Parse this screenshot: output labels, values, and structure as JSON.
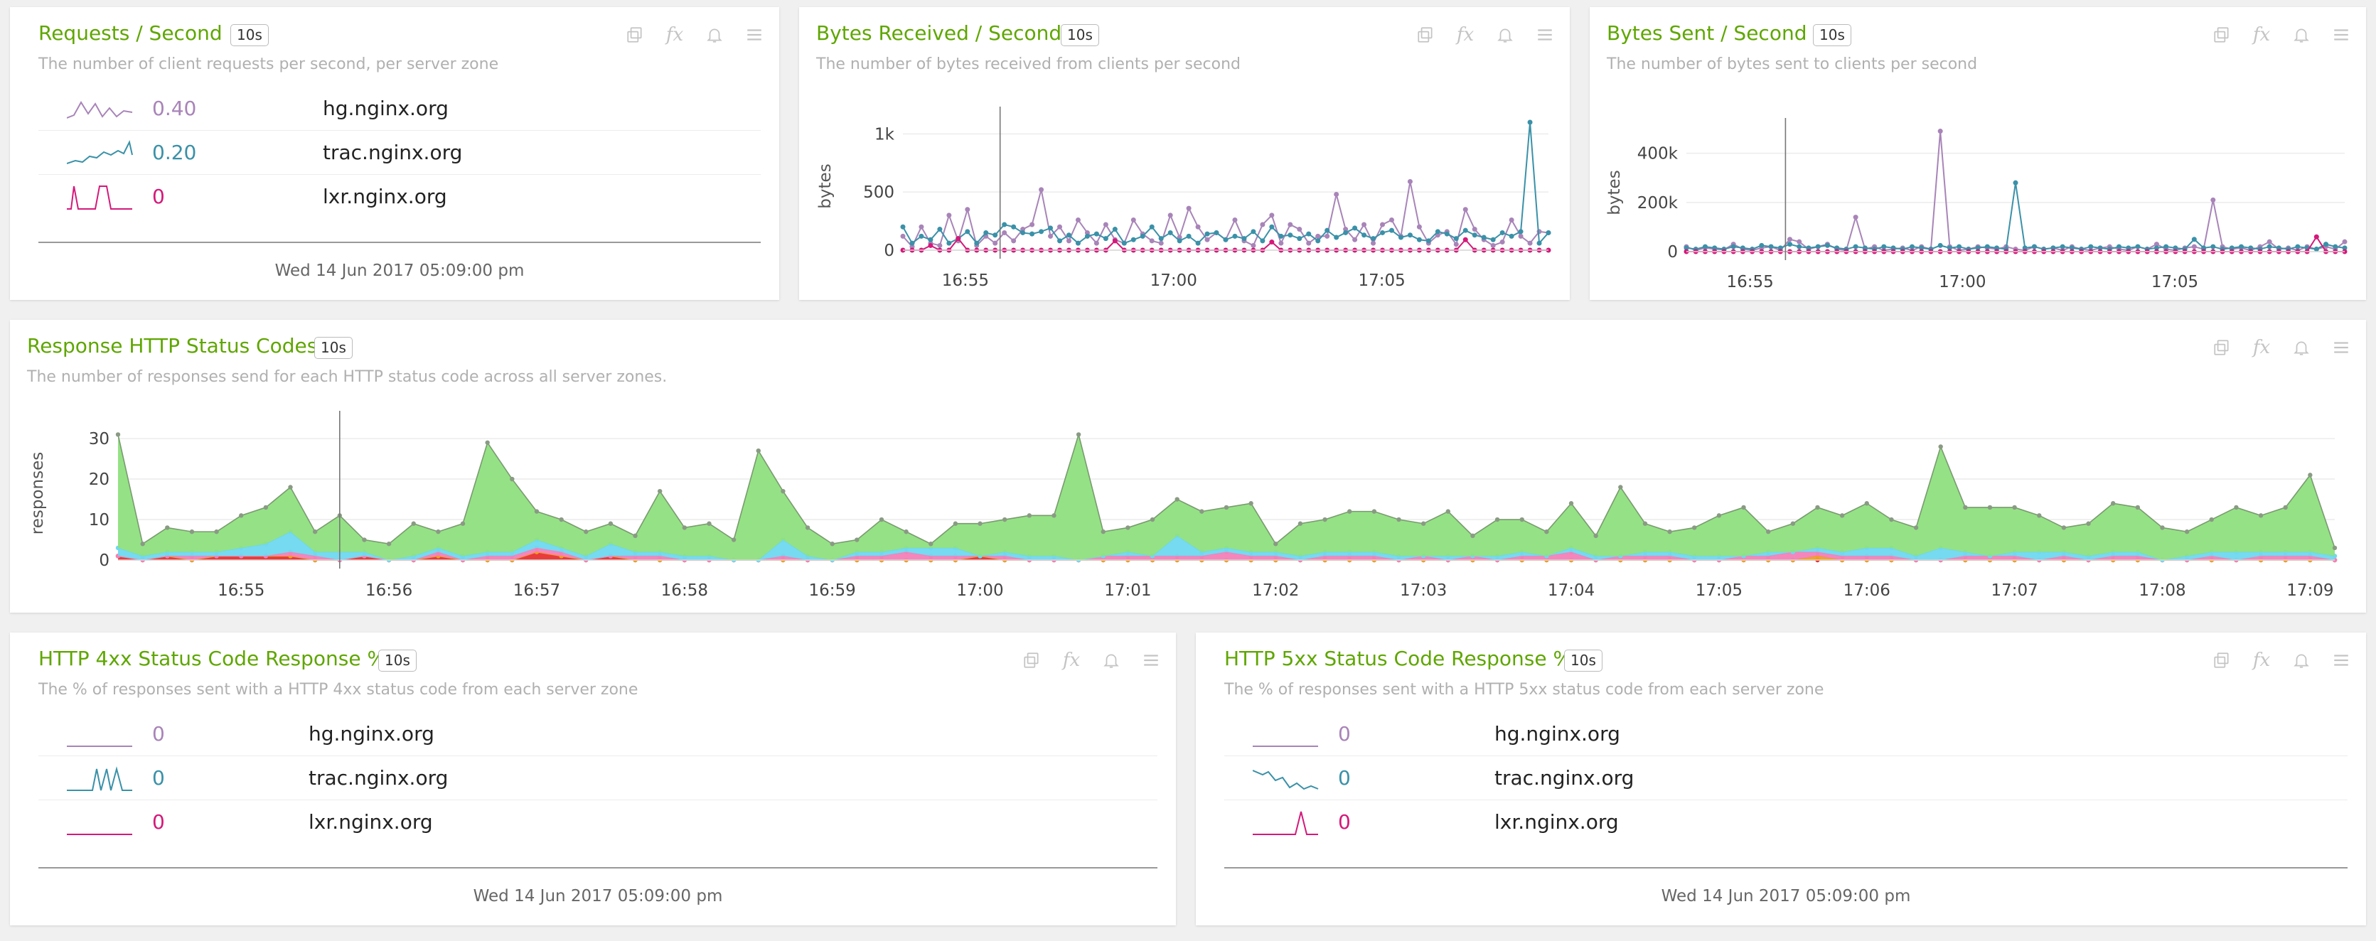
{
  "icons": [
    "duplicate-icon",
    "fx-icon",
    "bell-icon",
    "menu-icon"
  ],
  "toolbar": {
    "fx_label": "fx"
  },
  "colors": {
    "title_green": "#5fa600",
    "hg": "#a884b8",
    "trac": "#3a91a8",
    "lxr": "#d4197a",
    "area_green": "#8ee07e",
    "area_cyan": "#6fd8f0",
    "area_pink": "#f47fb8",
    "area_orange": "#f0a020",
    "area_red": "#e83030"
  },
  "panels": {
    "requests": {
      "title": "Requests / Second",
      "interval": "10s",
      "description": "The number of client requests per second, per server zone",
      "rows": [
        {
          "value": "0.40",
          "zone": "hg.nginx.org"
        },
        {
          "value": "0.20",
          "zone": "trac.nginx.org"
        },
        {
          "value": "0",
          "zone": "lxr.nginx.org"
        }
      ],
      "timestamp": "Wed 14 Jun 2017 05:09:00 pm"
    },
    "bytes_received": {
      "title": "Bytes Received / Second",
      "interval": "10s",
      "description": "The number of bytes received from clients per second"
    },
    "bytes_sent": {
      "title": "Bytes Sent / Second",
      "interval": "10s",
      "description": "The number of bytes sent to clients per second"
    },
    "status_codes": {
      "title": "Response HTTP Status Codes",
      "interval": "10s",
      "description": "The number of responses send for each HTTP status code across all server zones."
    },
    "http4xx": {
      "title": "HTTP 4xx Status Code Response %",
      "interval": "10s",
      "description": "The % of responses sent with a HTTP 4xx status code from each server zone",
      "rows": [
        {
          "value": "0",
          "zone": "hg.nginx.org"
        },
        {
          "value": "0",
          "zone": "trac.nginx.org"
        },
        {
          "value": "0",
          "zone": "lxr.nginx.org"
        }
      ],
      "timestamp": "Wed 14 Jun 2017 05:09:00 pm"
    },
    "http5xx": {
      "title": "HTTP 5xx Status Code Response %",
      "interval": "10s",
      "description": "The % of responses sent with a HTTP 5xx status code from each server zone",
      "rows": [
        {
          "value": "0",
          "zone": "hg.nginx.org"
        },
        {
          "value": "0",
          "zone": "trac.nginx.org"
        },
        {
          "value": "0",
          "zone": "lxr.nginx.org"
        }
      ],
      "timestamp": "Wed 14 Jun 2017 05:09:00 pm"
    }
  },
  "chart_data": [
    {
      "id": "bytes_received",
      "type": "line",
      "ylabel": "bytes",
      "ylim": [
        0,
        1100
      ],
      "yticks": [
        0,
        500,
        1000
      ],
      "ytick_labels": [
        "0",
        "500",
        "1k"
      ],
      "xlim": [
        "16:53:30",
        "17:09:00"
      ],
      "xticks": [
        "16:55",
        "17:00",
        "17:05"
      ],
      "cursor_time": "16:55:50",
      "grid": true,
      "series": [
        {
          "color": "#a884b8",
          "values": [
            120,
            30,
            200,
            60,
            40,
            300,
            80,
            350,
            40,
            120,
            60,
            150,
            80,
            180,
            220,
            520,
            120,
            200,
            80,
            260,
            150,
            60,
            220,
            90,
            60,
            260,
            140,
            80,
            60,
            300,
            110,
            360,
            200,
            90,
            150,
            90,
            260,
            80,
            40,
            220,
            300,
            60,
            220,
            180,
            60,
            120,
            120,
            480,
            180,
            90,
            220,
            60,
            220,
            260,
            120,
            590,
            200,
            60,
            130,
            160,
            50,
            350,
            180,
            90,
            40,
            70,
            260,
            120,
            60,
            160,
            150
          ]
        },
        {
          "color": "#3a91a8",
          "values": [
            200,
            60,
            120,
            90,
            180,
            60,
            100,
            160,
            60,
            150,
            130,
            220,
            200,
            150,
            140,
            160,
            190,
            80,
            130,
            60,
            120,
            140,
            100,
            180,
            60,
            90,
            120,
            200,
            100,
            150,
            80,
            120,
            60,
            140,
            150,
            90,
            120,
            100,
            160,
            80,
            200,
            120,
            130,
            100,
            140,
            80,
            170,
            110,
            150,
            190,
            130,
            100,
            150,
            170,
            110,
            130,
            90,
            80,
            160,
            140,
            100,
            170,
            130,
            110,
            90,
            150,
            120,
            160,
            1100,
            60,
            150
          ]
        },
        {
          "color": "#d4197a",
          "values": [
            0,
            0,
            0,
            40,
            0,
            0,
            100,
            0,
            0,
            0,
            0,
            0,
            0,
            0,
            0,
            0,
            0,
            0,
            0,
            0,
            0,
            0,
            0,
            80,
            0,
            0,
            0,
            0,
            0,
            0,
            0,
            0,
            0,
            0,
            0,
            0,
            0,
            0,
            0,
            0,
            70,
            0,
            0,
            0,
            0,
            0,
            0,
            0,
            0,
            0,
            0,
            0,
            0,
            0,
            0,
            0,
            0,
            0,
            0,
            0,
            0,
            90,
            0,
            0,
            0,
            0,
            0,
            0,
            0,
            0,
            0
          ]
        }
      ]
    },
    {
      "id": "bytes_sent",
      "type": "line",
      "ylabel": "bytes",
      "ylim": [
        0,
        480000
      ],
      "yticks": [
        0,
        200000,
        400000
      ],
      "ytick_labels": [
        "0",
        "200k",
        "400k"
      ],
      "xlim": [
        "16:53:30",
        "17:09:00"
      ],
      "xticks": [
        "16:55",
        "17:00",
        "17:05"
      ],
      "cursor_time": "16:55:50",
      "grid": true,
      "series": [
        {
          "color": "#a884b8",
          "values": [
            20000,
            5000,
            15000,
            10000,
            8000,
            30000,
            10000,
            5000,
            15000,
            20000,
            5000,
            50000,
            40000,
            10000,
            20000,
            30000,
            10000,
            5000,
            140000,
            10000,
            20000,
            5000,
            10000,
            15000,
            5000,
            20000,
            10000,
            490000,
            20000,
            5000,
            10000,
            20000,
            15000,
            10000,
            20000,
            10000,
            5000,
            20000,
            10000,
            15000,
            5000,
            20000,
            10000,
            5000,
            15000,
            20000,
            10000,
            5000,
            20000,
            10000,
            30000,
            10000,
            5000,
            15000,
            20000,
            10000,
            210000,
            20000,
            10000,
            15000,
            5000,
            20000,
            40000,
            10000,
            15000,
            5000,
            20000,
            10000,
            20000,
            10000,
            40000
          ]
        },
        {
          "color": "#3a91a8",
          "values": [
            15000,
            10000,
            20000,
            15000,
            10000,
            20000,
            15000,
            10000,
            25000,
            20000,
            15000,
            30000,
            20000,
            15000,
            20000,
            25000,
            15000,
            10000,
            20000,
            15000,
            10000,
            20000,
            15000,
            10000,
            20000,
            15000,
            10000,
            25000,
            15000,
            20000,
            10000,
            15000,
            20000,
            15000,
            10000,
            280000,
            15000,
            20000,
            10000,
            15000,
            20000,
            15000,
            10000,
            20000,
            15000,
            10000,
            20000,
            15000,
            20000,
            10000,
            15000,
            20000,
            15000,
            10000,
            50000,
            15000,
            20000,
            10000,
            15000,
            20000,
            15000,
            10000,
            20000,
            15000,
            10000,
            20000,
            15000,
            10000,
            30000,
            20000,
            15000
          ]
        },
        {
          "color": "#d4197a",
          "values": [
            0,
            0,
            0,
            0,
            0,
            0,
            0,
            0,
            0,
            0,
            0,
            0,
            0,
            0,
            0,
            0,
            0,
            0,
            0,
            0,
            0,
            0,
            0,
            0,
            0,
            0,
            0,
            0,
            0,
            0,
            0,
            0,
            0,
            0,
            0,
            0,
            0,
            0,
            0,
            0,
            0,
            0,
            0,
            0,
            0,
            0,
            0,
            0,
            0,
            0,
            0,
            0,
            0,
            0,
            0,
            0,
            0,
            0,
            0,
            0,
            0,
            0,
            0,
            0,
            0,
            0,
            0,
            60000,
            0,
            0,
            0
          ]
        }
      ]
    },
    {
      "id": "status_codes",
      "type": "area",
      "ylabel": "responses",
      "ylim": [
        0,
        33
      ],
      "yticks": [
        0,
        10,
        20,
        30
      ],
      "ytick_labels": [
        "0",
        "10",
        "20",
        "30"
      ],
      "xlim": [
        "16:54:10",
        "17:09:10"
      ],
      "xticks": [
        "16:55",
        "16:56",
        "16:57",
        "16:58",
        "16:59",
        "17:00",
        "17:01",
        "17:02",
        "17:03",
        "17:04",
        "17:05",
        "17:06",
        "17:07",
        "17:08",
        "17:09"
      ],
      "cursor_time": "16:55:40",
      "grid": true,
      "stacked": true,
      "x_step_seconds": 10,
      "series": [
        {
          "color": "#e83030",
          "values": [
            1,
            0,
            1,
            0,
            1,
            1,
            1,
            1,
            0,
            0,
            1,
            0,
            0,
            1,
            0,
            0,
            0,
            2,
            1,
            0,
            1,
            0,
            0,
            0,
            0,
            0,
            0,
            0,
            0,
            0,
            0,
            0,
            0,
            0,
            0,
            1,
            0,
            0,
            0,
            0,
            0,
            0,
            0,
            0,
            0,
            0,
            0,
            0,
            0,
            0,
            0,
            0,
            0,
            0,
            0,
            0,
            0,
            0,
            0,
            0,
            0,
            0,
            0,
            0,
            0,
            0,
            0,
            0,
            0,
            0,
            0,
            0,
            0,
            0,
            0,
            0,
            0,
            0,
            0,
            0,
            0,
            0,
            0,
            0,
            0,
            0,
            0,
            0,
            0,
            0,
            0
          ]
        },
        {
          "color": "#f0a020",
          "values": [
            0,
            0,
            0,
            0,
            0,
            0,
            0,
            0,
            0,
            0,
            0,
            0,
            0,
            0,
            0,
            0,
            0,
            0,
            0,
            0,
            0,
            0,
            0,
            0,
            0,
            0,
            0,
            0,
            0,
            0,
            0,
            0,
            0,
            0,
            0,
            0,
            0,
            0,
            0,
            0,
            0,
            0,
            0,
            0,
            0,
            0,
            0,
            0,
            0,
            0,
            0,
            0,
            0,
            0,
            0,
            0,
            0,
            0,
            0,
            0,
            0,
            0,
            0,
            0,
            0,
            0,
            0,
            0,
            0,
            1,
            0,
            0,
            0,
            0,
            0,
            0,
            0,
            0,
            0,
            0,
            0,
            0,
            0,
            0,
            0,
            0,
            0,
            0,
            0,
            0,
            0
          ]
        },
        {
          "color": "#f47fb8",
          "values": [
            0,
            0,
            0,
            1,
            0,
            0,
            0,
            1,
            1,
            0,
            0,
            0,
            0,
            1,
            0,
            1,
            1,
            1,
            1,
            0,
            0,
            1,
            1,
            0,
            0,
            0,
            0,
            1,
            0,
            0,
            1,
            1,
            2,
            1,
            1,
            0,
            1,
            0,
            0,
            0,
            1,
            1,
            1,
            1,
            1,
            2,
            1,
            1,
            0,
            1,
            1,
            1,
            0,
            1,
            0,
            1,
            0,
            1,
            1,
            2,
            0,
            1,
            1,
            1,
            0,
            0,
            1,
            1,
            2,
            1,
            1,
            1,
            1,
            0,
            0,
            1,
            1,
            1,
            0,
            1,
            0,
            1,
            1,
            0,
            0,
            1,
            0,
            1,
            1,
            1,
            0
          ]
        },
        {
          "color": "#6fd8f0",
          "values": [
            2,
            1,
            1,
            1,
            1,
            2,
            3,
            5,
            1,
            2,
            1,
            0,
            1,
            1,
            1,
            1,
            1,
            2,
            1,
            1,
            3,
            1,
            1,
            1,
            1,
            0,
            0,
            4,
            1,
            0,
            1,
            1,
            1,
            2,
            2,
            0,
            1,
            1,
            1,
            0,
            0,
            1,
            0,
            5,
            1,
            1,
            1,
            1,
            1,
            1,
            1,
            1,
            1,
            0,
            1,
            0,
            1,
            1,
            0,
            1,
            1,
            0,
            1,
            1,
            1,
            1,
            0,
            1,
            0,
            1,
            1,
            2,
            2,
            1,
            3,
            1,
            0,
            1,
            2,
            1,
            1,
            1,
            1,
            0,
            1,
            1,
            2,
            1,
            1,
            1,
            1
          ]
        },
        {
          "color": "#8ee07e",
          "values": [
            28,
            3,
            6,
            5,
            5,
            8,
            9,
            11,
            5,
            9,
            3,
            4,
            8,
            4,
            8,
            27,
            18,
            7,
            7,
            6,
            5,
            4,
            15,
            7,
            8,
            5,
            27,
            12,
            7,
            4,
            3,
            8,
            4,
            1,
            6,
            8,
            8,
            10,
            10,
            31,
            6,
            6,
            9,
            9,
            10,
            10,
            12,
            2,
            8,
            8,
            10,
            10,
            9,
            8,
            11,
            5,
            9,
            8,
            6,
            11,
            5,
            17,
            7,
            5,
            7,
            10,
            12,
            5,
            7,
            10,
            9,
            11,
            7,
            7,
            25,
            11,
            12,
            11,
            9,
            6,
            8,
            12,
            11,
            8,
            6,
            8,
            11,
            9,
            11,
            19,
            2
          ]
        }
      ]
    }
  ]
}
